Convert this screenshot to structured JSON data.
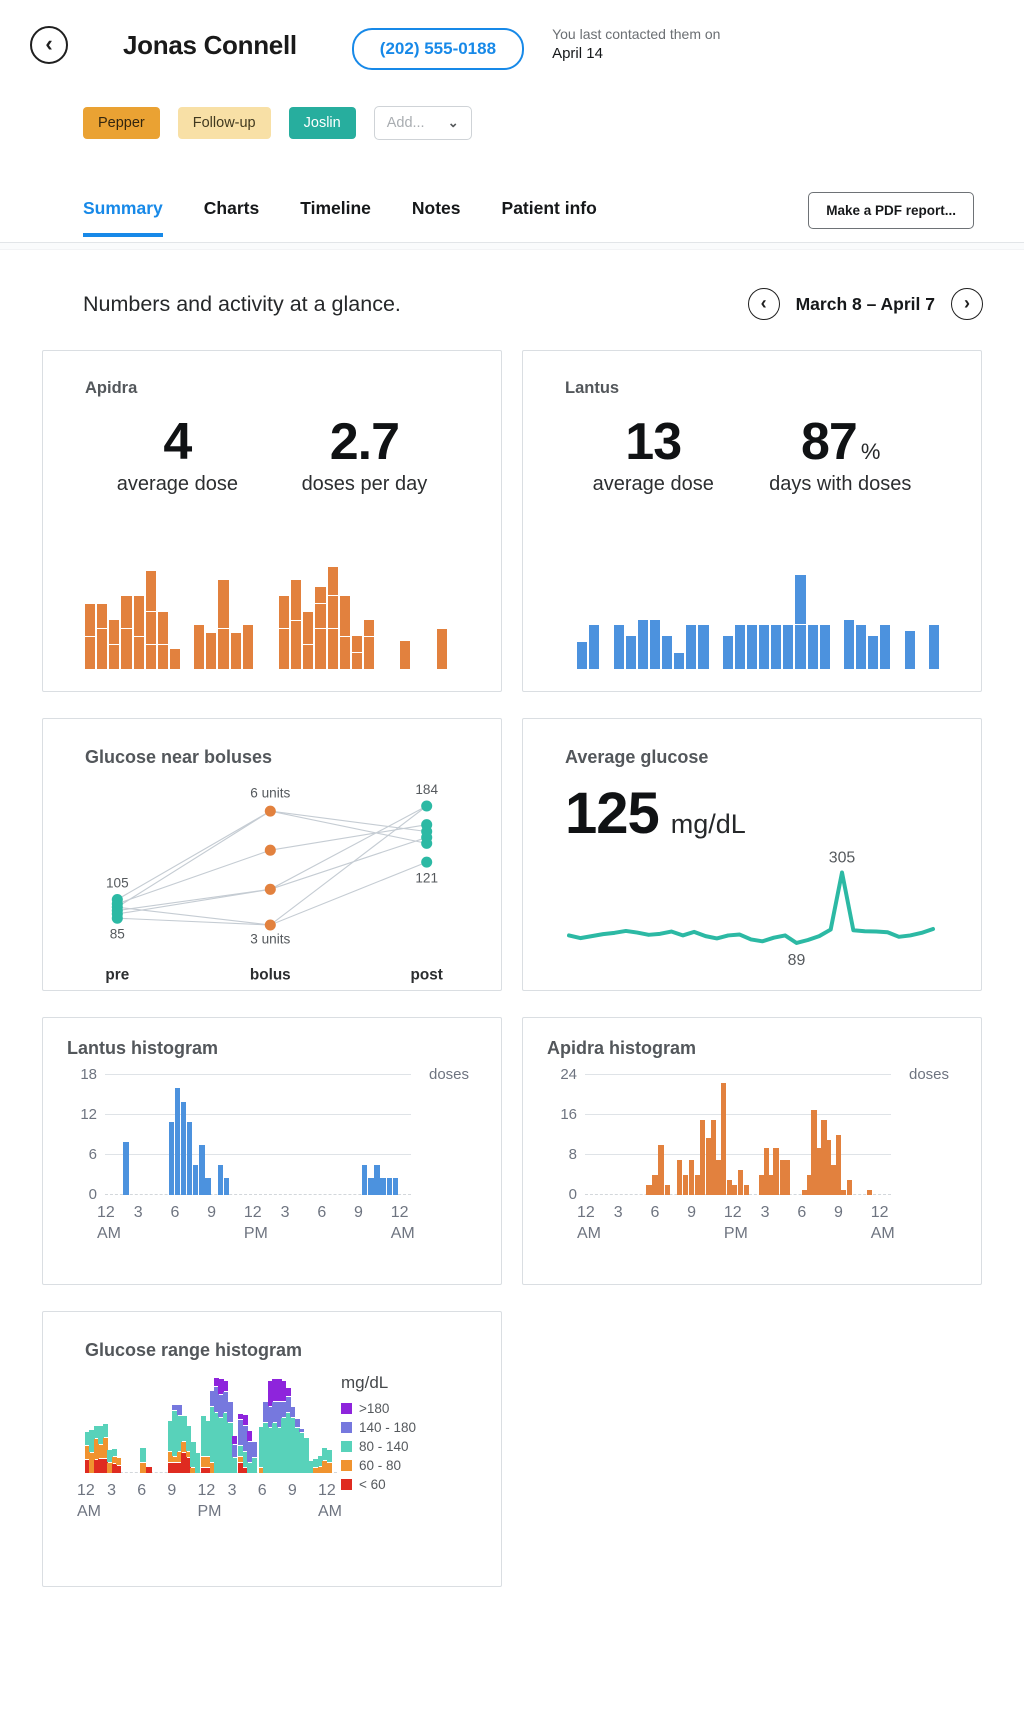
{
  "icons": {
    "back": "‹",
    "prev": "‹",
    "next": "›",
    "chevron_down": "⌄"
  },
  "header": {
    "patient_name": "Jonas Connell",
    "phone": "(202) 555-0188",
    "last_contact_line1": "You last contacted them on",
    "last_contact_line2": "April 14",
    "tags": [
      {
        "label": "Pepper",
        "bg": "#eaa233",
        "color": "#33260f"
      },
      {
        "label": "Follow-up",
        "bg": "#f8e0a6",
        "color": "#41391f"
      },
      {
        "label": "Joslin",
        "bg": "#27ae9e",
        "color": "#ffffff"
      }
    ],
    "add_tag_placeholder": "Add..."
  },
  "tabs": {
    "items": [
      {
        "label": "Summary",
        "active": true
      },
      {
        "label": "Charts",
        "active": false
      },
      {
        "label": "Timeline",
        "active": false
      },
      {
        "label": "Notes",
        "active": false
      },
      {
        "label": "Patient info",
        "active": false
      }
    ],
    "pdf_button": "Make a PDF report..."
  },
  "overview": {
    "heading": "Numbers and activity at a glance.",
    "date_range": "March 8 – April 7"
  },
  "hist_xticks": [
    {
      "h": 0,
      "t": "12",
      "sub": "AM"
    },
    {
      "h": 3,
      "t": "3"
    },
    {
      "h": 6,
      "t": "6"
    },
    {
      "h": 9,
      "t": "9"
    },
    {
      "h": 12,
      "t": "12",
      "sub": "PM"
    },
    {
      "h": 15,
      "t": "3"
    },
    {
      "h": 18,
      "t": "6"
    },
    {
      "h": 21,
      "t": "9"
    },
    {
      "h": 24,
      "t": "12",
      "sub": "AM"
    }
  ],
  "cards": {
    "apidra": {
      "title": "Apidra",
      "stats": [
        {
          "value": "4",
          "label": "average dose"
        },
        {
          "value": "2.7",
          "label": "doses per day"
        }
      ],
      "color": "#e2813e",
      "unit": 8,
      "days": [
        [
          4,
          4
        ],
        [
          5,
          3
        ],
        [
          3,
          3
        ],
        [
          5,
          4
        ],
        [
          4,
          5
        ],
        [
          3,
          4,
          5
        ],
        [
          3,
          4
        ],
        [
          2.5
        ],
        [],
        [
          5.5
        ],
        [
          4.5
        ],
        [
          5,
          6
        ],
        [
          4.5
        ],
        [
          5.5
        ],
        [],
        [],
        [
          5,
          4
        ],
        [
          6,
          5
        ],
        [
          3,
          4
        ],
        [
          5,
          3,
          2
        ],
        [
          5,
          4,
          3.5
        ],
        [
          4,
          5
        ],
        [
          2,
          2
        ],
        [
          4,
          2
        ],
        [],
        [],
        [
          3.5
        ],
        [],
        [],
        [
          5
        ],
        []
      ]
    },
    "lantus": {
      "title": "Lantus",
      "stats": [
        {
          "value": "13",
          "label": "average dose"
        },
        {
          "value": "87",
          "suffix": "%",
          "label": "days with doses"
        }
      ],
      "color": "#4c92de",
      "unit": 11,
      "days": [
        [],
        [
          2.5
        ],
        [
          4
        ],
        [],
        [
          4
        ],
        [
          3
        ],
        [
          4.5
        ],
        [
          4.5
        ],
        [
          3
        ],
        [
          1.5
        ],
        [
          4
        ],
        [
          4
        ],
        [],
        [
          3
        ],
        [
          4
        ],
        [
          4
        ],
        [
          4
        ],
        [
          4
        ],
        [
          4
        ],
        [
          4,
          4.5
        ],
        [
          4
        ],
        [
          4
        ],
        [],
        [
          4.5
        ],
        [
          4
        ],
        [
          3
        ],
        [
          4
        ],
        [],
        [
          3.5
        ],
        [],
        [
          4
        ]
      ]
    },
    "boluses": {
      "title": "Glucose near boluses",
      "axis_labels": [
        "pre",
        "bolus",
        "post"
      ],
      "labels": {
        "pre_top": "105",
        "pre_bottom": "85",
        "bolus_top": "6 units",
        "bolus_bottom": "3 units",
        "post_top": "184",
        "post_bottom": "121"
      },
      "glucose_color": "#2cb9a4",
      "bolus_color": "#e2813e",
      "line_color": "#c5ccd3",
      "col_x": {
        "pre": 38,
        "bolus": 218,
        "post": 402
      },
      "pre_y": [
        150,
        155,
        159,
        163,
        167,
        172
      ],
      "bolus_y": [
        46,
        92,
        138,
        180
      ],
      "post_y": [
        40,
        62,
        70,
        77,
        84,
        106
      ],
      "lines": [
        [
          0,
          0,
          2
        ],
        [
          2,
          0,
          4
        ],
        [
          1,
          1,
          1
        ],
        [
          3,
          2,
          0
        ],
        [
          4,
          2,
          3
        ],
        [
          5,
          3,
          0
        ],
        [
          2,
          3,
          5
        ]
      ]
    },
    "avg_glucose": {
      "title": "Average glucose",
      "value": "125",
      "unit_label": "mg/dL",
      "color": "#2cb9a4",
      "peak_label": "305",
      "trough_label": "89",
      "values": [
        112,
        104,
        110,
        116,
        120,
        126,
        121,
        114,
        117,
        124,
        112,
        123,
        110,
        103,
        112,
        115,
        100,
        94,
        105,
        112,
        89,
        98,
        110,
        130,
        305,
        128,
        125,
        124,
        122,
        108,
        112,
        120,
        132
      ],
      "ymin": 60,
      "ymax": 310
    },
    "lantus_hist": {
      "title": "Lantus histogram",
      "unit_label": "doses",
      "color": "#4c92de",
      "yticks": [
        0,
        6,
        12,
        18
      ],
      "axis_max": 18,
      "bars": [
        [
          1.5,
          8
        ],
        [
          5.2,
          11
        ],
        [
          5.7,
          16
        ],
        [
          6.2,
          14
        ],
        [
          6.7,
          11
        ],
        [
          7.2,
          4.5
        ],
        [
          7.7,
          7.5
        ],
        [
          8.2,
          2.5
        ],
        [
          9.2,
          4.5
        ],
        [
          9.7,
          2.5
        ],
        [
          21,
          4.5
        ],
        [
          21.5,
          2.5
        ],
        [
          22,
          4.5
        ],
        [
          22.5,
          2.5
        ],
        [
          23,
          2.5
        ],
        [
          23.5,
          2.5
        ]
      ]
    },
    "apidra_hist": {
      "title": "Apidra histogram",
      "unit_label": "doses",
      "color": "#e2813e",
      "yticks": [
        0,
        8,
        16,
        24
      ],
      "axis_max": 24,
      "bars": [
        [
          5,
          2
        ],
        [
          5.5,
          4
        ],
        [
          6,
          10
        ],
        [
          6.5,
          2
        ],
        [
          7.5,
          7
        ],
        [
          8,
          4
        ],
        [
          8.5,
          7
        ],
        [
          9,
          4
        ],
        [
          9.4,
          15
        ],
        [
          9.9,
          11.5
        ],
        [
          10.3,
          15
        ],
        [
          10.7,
          7
        ],
        [
          11.1,
          22.5
        ],
        [
          11.6,
          3
        ],
        [
          12,
          2
        ],
        [
          12.5,
          5
        ],
        [
          13,
          2
        ],
        [
          14.2,
          4
        ],
        [
          14.6,
          9.5
        ],
        [
          15,
          4
        ],
        [
          15.4,
          9.5
        ],
        [
          15.9,
          7
        ],
        [
          16.3,
          7
        ],
        [
          17.7,
          1
        ],
        [
          18.1,
          4
        ],
        [
          18.5,
          17
        ],
        [
          18.9,
          9.5
        ],
        [
          19.3,
          15
        ],
        [
          19.7,
          11
        ],
        [
          20.1,
          6
        ],
        [
          20.5,
          12
        ],
        [
          20.9,
          1
        ],
        [
          21.4,
          3
        ],
        [
          23,
          1
        ]
      ]
    },
    "range_hist": {
      "title": "Glucose range histogram",
      "legend_title": "mg/dL",
      "ranges": [
        {
          "label": ">180",
          "color": "#8e24dc"
        },
        {
          "label": "140 - 180",
          "color": "#7678de"
        },
        {
          "label": "80 - 140",
          "color": "#58d2ba"
        },
        {
          "label": "60 - 80",
          "color": "#f0932f"
        },
        {
          "label": "< 60",
          "color": "#df2b20"
        }
      ],
      "seg_colors_bottom_up": [
        "#df2b20",
        "#f0932f",
        "#58d2ba",
        "#7678de",
        "#8e24dc"
      ],
      "bars": [
        [
          0.0,
          [
            13,
            13,
            13,
            0,
            0
          ]
        ],
        [
          0.45,
          [
            0,
            20,
            22,
            0,
            0
          ]
        ],
        [
          0.9,
          [
            13,
            20,
            12,
            0,
            0
          ]
        ],
        [
          1.35,
          [
            14,
            13,
            18,
            0,
            0
          ]
        ],
        [
          1.8,
          [
            14,
            20,
            13,
            0,
            0
          ]
        ],
        [
          2.25,
          [
            0,
            10,
            12,
            0,
            0
          ]
        ],
        [
          2.7,
          [
            9,
            6,
            7,
            0,
            0
          ]
        ],
        [
          3.1,
          [
            7,
            7,
            0,
            0,
            0
          ]
        ],
        [
          5.6,
          [
            0,
            10,
            14,
            0,
            0
          ]
        ],
        [
          6.2,
          [
            6,
            0,
            0,
            0,
            0
          ]
        ],
        [
          8.4,
          [
            10,
            10,
            30,
            0,
            0
          ]
        ],
        [
          8.85,
          [
            10,
            5,
            45,
            5,
            0
          ]
        ],
        [
          9.3,
          [
            10,
            10,
            35,
            10,
            0
          ]
        ],
        [
          9.75,
          [
            20,
            10,
            25,
            0,
            0
          ]
        ],
        [
          10.2,
          [
            15,
            5,
            25,
            0,
            0
          ]
        ],
        [
          10.65,
          [
            0,
            5,
            25,
            0,
            0
          ]
        ],
        [
          11.1,
          [
            0,
            0,
            20,
            0,
            0
          ]
        ],
        [
          11.7,
          [
            5,
            10,
            40,
            0,
            0
          ]
        ],
        [
          12.15,
          [
            5,
            10,
            35,
            0,
            0
          ]
        ],
        [
          12.6,
          [
            0,
            10,
            55,
            15,
            0
          ]
        ],
        [
          13.05,
          [
            0,
            0,
            60,
            25,
            8
          ]
        ],
        [
          13.5,
          [
            0,
            0,
            55,
            22,
            15
          ]
        ],
        [
          13.95,
          [
            0,
            0,
            60,
            20,
            10
          ]
        ],
        [
          14.4,
          [
            0,
            0,
            50,
            20,
            0
          ]
        ],
        [
          14.85,
          [
            0,
            0,
            15,
            12,
            8
          ]
        ],
        [
          15.5,
          [
            10,
            5,
            10,
            25,
            5
          ]
        ],
        [
          15.95,
          [
            5,
            0,
            15,
            25,
            10
          ]
        ],
        [
          16.4,
          [
            0,
            0,
            10,
            20,
            10
          ]
        ],
        [
          16.85,
          [
            0,
            0,
            15,
            15,
            0
          ]
        ],
        [
          17.6,
          [
            0,
            5,
            40,
            0,
            0
          ]
        ],
        [
          18.05,
          [
            0,
            0,
            50,
            20,
            0
          ]
        ],
        [
          18.5,
          [
            0,
            0,
            45,
            20,
            25
          ]
        ],
        [
          18.95,
          [
            0,
            0,
            50,
            20,
            22
          ]
        ],
        [
          19.4,
          [
            0,
            0,
            45,
            25,
            22
          ]
        ],
        [
          19.85,
          [
            0,
            0,
            55,
            15,
            20
          ]
        ],
        [
          20.3,
          [
            0,
            0,
            60,
            15,
            8
          ]
        ],
        [
          20.75,
          [
            0,
            0,
            55,
            10,
            0
          ]
        ],
        [
          21.2,
          [
            0,
            0,
            45,
            8,
            0
          ]
        ],
        [
          21.65,
          [
            0,
            0,
            40,
            3,
            0
          ]
        ],
        [
          22.1,
          [
            0,
            0,
            35,
            0,
            0
          ]
        ],
        [
          22.55,
          [
            0,
            0,
            12,
            0,
            0
          ]
        ],
        [
          23.1,
          [
            0,
            5,
            8,
            0,
            0
          ]
        ],
        [
          23.55,
          [
            0,
            6,
            10,
            0,
            0
          ]
        ],
        [
          24.0,
          [
            0,
            12,
            12,
            0,
            0
          ]
        ],
        [
          24.45,
          [
            0,
            10,
            12,
            0,
            0
          ]
        ]
      ]
    }
  }
}
